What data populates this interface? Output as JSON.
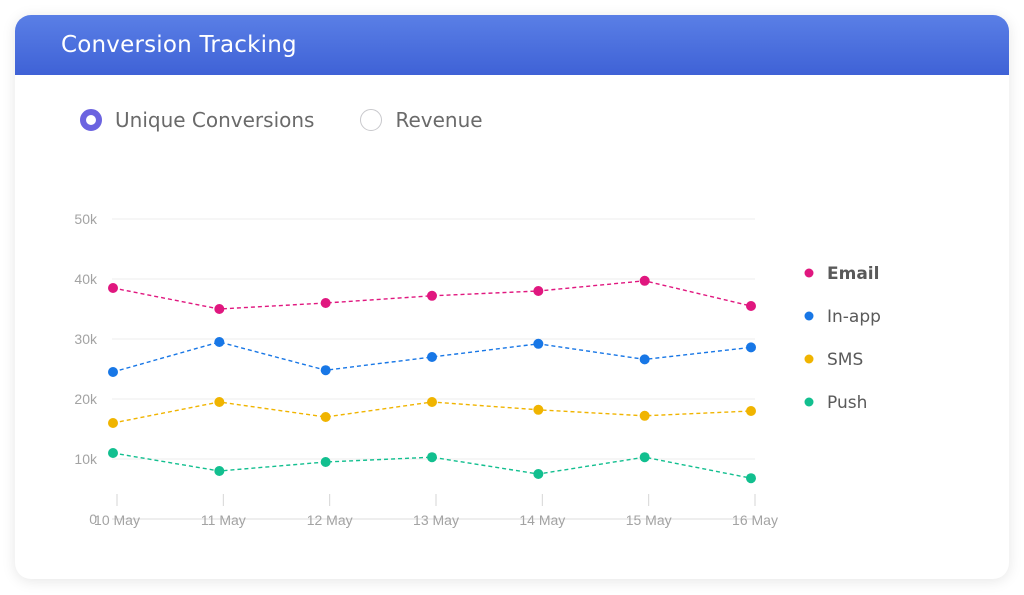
{
  "header": {
    "title": "Conversion Tracking"
  },
  "metric_toggle": {
    "options": [
      {
        "label": "Unique Conversions",
        "selected": true
      },
      {
        "label": "Revenue",
        "selected": false
      }
    ],
    "accent_color": "#6b63e0"
  },
  "colors": {
    "header_start": "#5a7fe6",
    "header_end": "#3f62d6"
  },
  "chart_data": {
    "type": "line",
    "categories": [
      "10 May",
      "11 May",
      "12 May",
      "13 May",
      "14 May",
      "15 May",
      "16 May"
    ],
    "y_ticks": [
      {
        "value": 0,
        "label": "0"
      },
      {
        "value": 10000,
        "label": "10k"
      },
      {
        "value": 20000,
        "label": "20k"
      },
      {
        "value": 30000,
        "label": "30k"
      },
      {
        "value": 40000,
        "label": "40k"
      },
      {
        "value": 50000,
        "label": "50k"
      }
    ],
    "ylim": [
      0,
      50000
    ],
    "grid": true,
    "line_style": "dashed",
    "legend_position": "right",
    "series": [
      {
        "name": "Email",
        "color": "#e0177f",
        "bold": true,
        "values": [
          38500,
          35000,
          36000,
          37200,
          38000,
          39700,
          35500
        ]
      },
      {
        "name": "In-app",
        "color": "#1877e6",
        "bold": false,
        "values": [
          24500,
          29500,
          24800,
          27000,
          29200,
          26600,
          28600
        ]
      },
      {
        "name": "SMS",
        "color": "#f0b400",
        "bold": false,
        "values": [
          16000,
          19500,
          17000,
          19500,
          18200,
          17200,
          18000
        ]
      },
      {
        "name": "Push",
        "color": "#12bf8f",
        "bold": false,
        "values": [
          11000,
          8000,
          9500,
          10300,
          7500,
          10300,
          6800
        ]
      }
    ]
  }
}
